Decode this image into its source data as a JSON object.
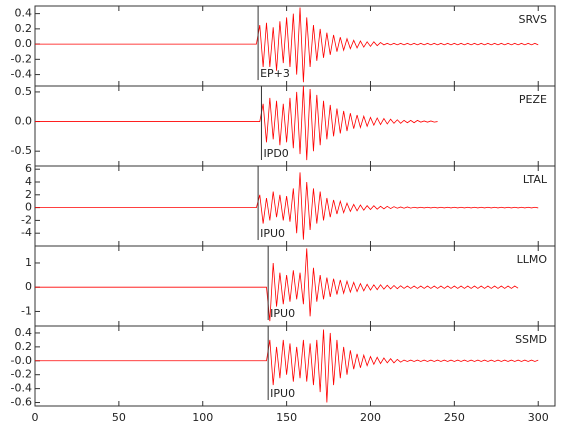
{
  "chart_data": [
    {
      "type": "line",
      "label": "SRVS",
      "color": "#ff0000",
      "pick": {
        "x": 133,
        "label": "EP+3"
      },
      "xlim": [
        0,
        310
      ],
      "xticks": [
        0,
        50,
        100,
        150,
        200,
        250,
        300
      ],
      "ylim": [
        -0.55,
        0.5
      ],
      "yticks": [
        -0.4,
        -0.2,
        {
          "value": 0,
          "label": "0.0"
        },
        0.2,
        0.4
      ],
      "x": [
        0,
        132,
        134,
        136,
        138,
        140,
        142,
        144,
        146,
        148,
        150,
        152,
        154,
        156,
        158,
        160,
        162,
        164,
        166,
        168,
        170,
        172,
        174,
        176,
        178,
        180,
        182,
        184,
        186,
        188,
        190,
        192,
        194,
        196,
        198,
        200,
        202,
        204,
        206,
        208,
        210,
        212,
        214,
        216,
        218,
        220,
        222,
        224,
        226,
        228,
        230,
        232,
        234,
        236,
        238,
        240,
        242,
        244,
        246,
        248,
        250,
        252,
        254,
        256,
        258,
        260,
        262,
        264,
        266,
        268,
        270,
        272,
        274,
        276,
        278,
        280,
        282,
        284,
        286,
        288,
        290,
        292,
        294,
        296,
        298,
        300
      ],
      "values": [
        0,
        0,
        0.25,
        -0.3,
        0.28,
        -0.3,
        0.22,
        -0.35,
        0.3,
        -0.25,
        0.35,
        -0.3,
        0.4,
        -0.4,
        0.48,
        -0.5,
        0.35,
        -0.3,
        0.25,
        -0.22,
        0.2,
        -0.18,
        0.15,
        -0.14,
        0.12,
        -0.1,
        0.09,
        -0.08,
        0.07,
        -0.06,
        0.05,
        -0.05,
        0.04,
        -0.04,
        0.03,
        -0.03,
        0.03,
        -0.02,
        0.02,
        -0.01,
        0.01,
        -0.01,
        0.01,
        -0.01,
        0.01,
        -0.01,
        0.01,
        -0.01,
        0.01,
        -0.01,
        0.01,
        -0.01,
        0.01,
        -0.01,
        0.01,
        -0.01,
        0.01,
        -0.01,
        0.01,
        -0.01,
        0.01,
        -0.01,
        0.01,
        -0.01,
        0.01,
        -0.01,
        0.01,
        -0.01,
        0.01,
        -0.01,
        0.01,
        -0.01,
        0.01,
        -0.01,
        0.01,
        -0.01,
        0.01,
        -0.01,
        0.01,
        -0.01,
        0.01,
        -0.01,
        0.01,
        -0.01,
        0.01,
        -0.01
      ]
    },
    {
      "type": "line",
      "label": "PEZE",
      "color": "#ff0000",
      "pick": {
        "x": 135,
        "label": "IPD0"
      },
      "xlim": [
        0,
        310
      ],
      "xticks": [
        0,
        50,
        100,
        150,
        200,
        250,
        300
      ],
      "ylim": [
        -0.75,
        0.6
      ],
      "yticks": [
        -0.5,
        {
          "value": 0,
          "label": "0.0"
        },
        0.5
      ],
      "x": [
        0,
        132,
        134,
        136,
        138,
        140,
        142,
        144,
        146,
        148,
        150,
        152,
        154,
        156,
        158,
        160,
        162,
        164,
        166,
        168,
        170,
        172,
        174,
        176,
        178,
        180,
        182,
        184,
        186,
        188,
        190,
        192,
        194,
        196,
        198,
        200,
        202,
        204,
        206,
        208,
        210,
        212,
        214,
        216,
        218,
        220,
        222,
        224,
        226,
        228,
        230,
        232,
        234,
        236,
        238,
        240,
        242,
        244,
        246,
        248,
        250,
        252,
        254,
        256,
        258,
        260,
        262,
        264,
        266,
        268,
        270,
        272,
        274,
        276,
        278,
        280,
        282,
        284,
        286,
        288,
        290,
        292,
        294,
        296,
        298,
        300
      ],
      "values": [
        0,
        0,
        0,
        0.3,
        -0.35,
        0.4,
        -0.3,
        0.35,
        -0.4,
        0.3,
        -0.35,
        0.4,
        -0.45,
        0.5,
        -0.55,
        0.6,
        -0.65,
        0.55,
        -0.5,
        0.45,
        -0.4,
        0.35,
        -0.3,
        0.28,
        -0.25,
        0.22,
        -0.2,
        0.18,
        -0.16,
        0.14,
        -0.12,
        0.11,
        -0.1,
        0.09,
        -0.08,
        0.07,
        -0.06,
        0.06,
        -0.05,
        0.05,
        -0.04,
        0.04,
        -0.03,
        0.03,
        -0.03,
        0.02,
        -0.02,
        0.02,
        -0.02,
        0.02,
        -0.01,
        0.01,
        -0.01,
        0.01,
        -0.01,
        0,
        null,
        null,
        null,
        null,
        null,
        null,
        null,
        null,
        null,
        null,
        null,
        null,
        null,
        null,
        null,
        null,
        null,
        null,
        null,
        null,
        null,
        null,
        null,
        null,
        null,
        null,
        null,
        null,
        null,
        null
      ]
    },
    {
      "type": "line",
      "label": "LTAL",
      "color": "#ff0000",
      "pick": {
        "x": 133,
        "label": "IPU0"
      },
      "xlim": [
        0,
        310
      ],
      "xticks": [
        0,
        50,
        100,
        150,
        200,
        250,
        300
      ],
      "ylim": [
        -6,
        6.5
      ],
      "yticks": [
        -4,
        -2,
        0,
        2,
        4,
        6
      ],
      "x": [
        0,
        132,
        134,
        136,
        138,
        140,
        142,
        144,
        146,
        148,
        150,
        152,
        154,
        156,
        158,
        160,
        162,
        164,
        166,
        168,
        170,
        172,
        174,
        176,
        178,
        180,
        182,
        184,
        186,
        188,
        190,
        192,
        194,
        196,
        198,
        200,
        202,
        204,
        206,
        208,
        210,
        212,
        214,
        216,
        218,
        220,
        222,
        224,
        226,
        228,
        230,
        232,
        234,
        236,
        238,
        240,
        242,
        244,
        246,
        248,
        250,
        252,
        254,
        256,
        258,
        260,
        262,
        264,
        266,
        268,
        270,
        272,
        274,
        276,
        278,
        280,
        282,
        284,
        286,
        288,
        290,
        292,
        294,
        296,
        298,
        300
      ],
      "values": [
        0,
        0,
        2,
        -2.5,
        1.5,
        -2,
        2.5,
        -1.5,
        2,
        -2,
        1.8,
        -2.2,
        3,
        -4,
        5.5,
        -5,
        4,
        -3.5,
        3,
        -2.5,
        2.5,
        -2,
        1.5,
        -1.5,
        1.2,
        -1,
        1,
        -0.8,
        0.7,
        -0.6,
        0.5,
        -0.5,
        0.4,
        -0.4,
        0.3,
        -0.3,
        0.3,
        -0.25,
        0.2,
        -0.2,
        0.2,
        -0.15,
        0.15,
        -0.1,
        0.1,
        -0.1,
        0.1,
        -0.08,
        0.05,
        -0.05,
        0.05,
        -0.05,
        0.05,
        -0.05,
        0.05,
        -0.05,
        0.05,
        -0.05,
        0.05,
        -0.05,
        0.05,
        -0.05,
        0.05,
        -0.05,
        0.05,
        -0.05,
        0.05,
        -0.05,
        0.05,
        -0.05,
        0.05,
        -0.05,
        0.05,
        -0.05,
        0.05,
        -0.05,
        0.05,
        -0.05,
        0.05,
        -0.05,
        0.05,
        -0.05,
        0.05,
        -0.05,
        0.05,
        -0.05
      ]
    },
    {
      "type": "line",
      "label": "LLMO",
      "color": "#ff0000",
      "pick": {
        "x": 139,
        "label": "IPU0"
      },
      "xlim": [
        0,
        310
      ],
      "xticks": [
        0,
        50,
        100,
        150,
        200,
        250,
        300
      ],
      "ylim": [
        -1.6,
        1.7
      ],
      "yticks": [
        -1,
        0,
        1
      ],
      "x": [
        0,
        132,
        134,
        136,
        138,
        140,
        142,
        144,
        146,
        148,
        150,
        152,
        154,
        156,
        158,
        160,
        162,
        164,
        166,
        168,
        170,
        172,
        174,
        176,
        178,
        180,
        182,
        184,
        186,
        188,
        190,
        192,
        194,
        196,
        198,
        200,
        202,
        204,
        206,
        208,
        210,
        212,
        214,
        216,
        218,
        220,
        222,
        224,
        226,
        228,
        230,
        232,
        234,
        236,
        238,
        240,
        242,
        244,
        246,
        248,
        250,
        252,
        254,
        256,
        258,
        260,
        262,
        264,
        266,
        268,
        270,
        272,
        274,
        276,
        278,
        280,
        282,
        284,
        286,
        288,
        290,
        292,
        294,
        296,
        298,
        300
      ],
      "values": [
        0,
        0,
        0,
        0,
        0,
        -1.4,
        1,
        -0.8,
        0.6,
        -0.7,
        0.5,
        -0.6,
        0.7,
        -0.5,
        0.6,
        -0.7,
        1.6,
        -1.2,
        0.8,
        -0.6,
        0.5,
        -0.5,
        0.4,
        -0.4,
        0.35,
        -0.3,
        0.3,
        -0.25,
        0.25,
        -0.2,
        0.2,
        -0.18,
        0.15,
        -0.15,
        0.12,
        -0.12,
        0.1,
        -0.1,
        0.1,
        -0.08,
        0.08,
        -0.07,
        0.07,
        -0.06,
        0.06,
        -0.05,
        0.05,
        -0.05,
        0.05,
        -0.05,
        0.05,
        -0.05,
        0.05,
        -0.05,
        0.05,
        -0.05,
        0.05,
        -0.05,
        0.05,
        -0.05,
        0.05,
        -0.05,
        0.05,
        -0.05,
        0.05,
        -0.05,
        0.05,
        -0.05,
        0.05,
        -0.05,
        0.05,
        -0.05,
        0.05,
        -0.05,
        0.05,
        -0.05,
        0.05,
        -0.05,
        0.05,
        -0.04,
        null,
        null,
        null,
        null,
        null,
        null
      ]
    },
    {
      "type": "line",
      "label": "SSMD",
      "color": "#ff0000",
      "pick": {
        "x": 139,
        "label": "IPU0"
      },
      "xlim": [
        0,
        310
      ],
      "xticks": [
        0,
        50,
        100,
        150,
        200,
        250,
        300
      ],
      "ylim": [
        -0.65,
        0.5
      ],
      "yticks": [
        -0.6,
        -0.4,
        -0.2,
        {
          "value": 0,
          "label": "-0.0"
        },
        0.2,
        0.4
      ],
      "x": [
        0,
        132,
        134,
        136,
        138,
        140,
        142,
        144,
        146,
        148,
        150,
        152,
        154,
        156,
        158,
        160,
        162,
        164,
        166,
        168,
        170,
        172,
        174,
        176,
        178,
        180,
        182,
        184,
        186,
        188,
        190,
        192,
        194,
        196,
        198,
        200,
        202,
        204,
        206,
        208,
        210,
        212,
        214,
        216,
        218,
        220,
        222,
        224,
        226,
        228,
        230,
        232,
        234,
        236,
        238,
        240,
        242,
        244,
        246,
        248,
        250,
        252,
        254,
        256,
        258,
        260,
        262,
        264,
        266,
        268,
        270,
        272,
        274,
        276,
        278,
        280,
        282,
        284,
        286,
        288,
        290,
        292,
        294,
        296,
        298,
        300
      ],
      "values": [
        0,
        0,
        0,
        0,
        0,
        0.3,
        -0.35,
        0.2,
        -0.25,
        0.3,
        -0.2,
        0.25,
        -0.3,
        0.2,
        -0.25,
        0.3,
        -0.3,
        0.25,
        -0.35,
        0.3,
        -0.45,
        0.45,
        -0.6,
        0.4,
        -0.35,
        0.3,
        -0.25,
        0.2,
        -0.2,
        0.15,
        -0.12,
        0.1,
        -0.1,
        0.08,
        -0.07,
        0.06,
        -0.05,
        0.05,
        -0.04,
        0.04,
        -0.03,
        0.03,
        -0.03,
        0.02,
        -0.02,
        0.01,
        -0.01,
        0.01,
        -0.01,
        0.01,
        -0.01,
        0.01,
        -0.01,
        0.01,
        -0.01,
        0.01,
        -0.01,
        0.01,
        -0.01,
        0.01,
        -0.01,
        0.01,
        -0.01,
        0.01,
        -0.01,
        0.01,
        -0.01,
        0.01,
        -0.01,
        0.01,
        -0.01,
        0.01,
        -0.01,
        0.01,
        -0.01,
        0.01,
        -0.01,
        0.01,
        -0.01,
        0.01,
        -0.01,
        0.01,
        -0.01,
        0.01,
        -0.01,
        0.01
      ]
    }
  ]
}
